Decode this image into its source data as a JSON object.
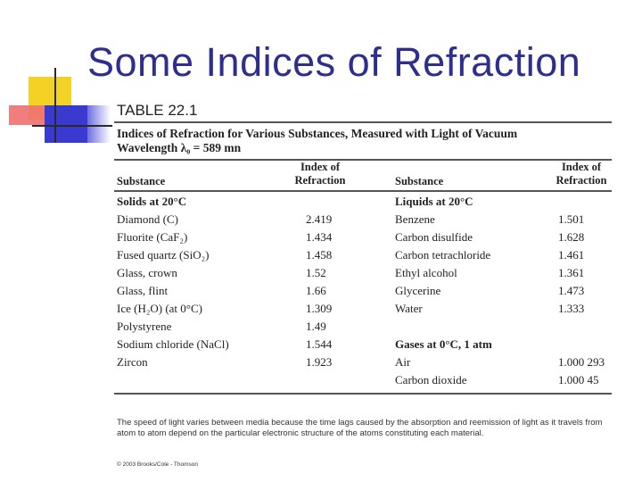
{
  "slide": {
    "title": "Some Indices of Refraction"
  },
  "table": {
    "label": "TABLE 22.1",
    "caption_line1": "Indices of Refraction for Various Substances, Measured with Light of Vacuum",
    "caption_line2": "Wavelength λ₀ = 589 mn",
    "headers": {
      "substance_left": "Substance",
      "index_left_1": "Index of",
      "index_left_2": "Refraction",
      "substance_right": "Substance",
      "index_right_1": "Index of",
      "index_right_2": "Refraction"
    },
    "left_section": "Solids at 20°C",
    "left_rows": [
      {
        "substance": "Diamond (C)",
        "index": "2.419"
      },
      {
        "substance": "Fluorite (CaF₂)",
        "index": "1.434"
      },
      {
        "substance": "Fused quartz (SiO₂)",
        "index": "1.458"
      },
      {
        "substance": "Glass, crown",
        "index": "1.52"
      },
      {
        "substance": "Glass, flint",
        "index": "1.66"
      },
      {
        "substance": "Ice (H₂O) (at 0°C)",
        "index": "1.309"
      },
      {
        "substance": "Polystyrene",
        "index": "1.49"
      },
      {
        "substance": "Sodium chloride (NaCl)",
        "index": "1.544"
      },
      {
        "substance": "Zircon",
        "index": "1.923"
      }
    ],
    "right_section_liquids": "Liquids at 20°C",
    "right_rows_liquids": [
      {
        "substance": "Benzene",
        "index": "1.501"
      },
      {
        "substance": "Carbon disulfide",
        "index": "1.628"
      },
      {
        "substance": "Carbon tetrachloride",
        "index": "1.461"
      },
      {
        "substance": "Ethyl alcohol",
        "index": "1.361"
      },
      {
        "substance": "Glycerine",
        "index": "1.473"
      },
      {
        "substance": "Water",
        "index": "1.333"
      }
    ],
    "right_section_gases": "Gases at 0°C, 1 atm",
    "right_rows_gases": [
      {
        "substance": "Air",
        "index": "1.000 293"
      },
      {
        "substance": "Carbon dioxide",
        "index": "1.000 45"
      }
    ],
    "footnote": "The speed of light varies between media because the time lags caused by the absorption and reemission of light as it travels from atom to atom depend on the particular electronic structure of the atoms constituting each material.",
    "copyright": "© 2003 Brooks/Cole - Thomson"
  }
}
